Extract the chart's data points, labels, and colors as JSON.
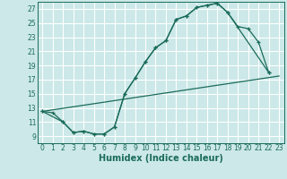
{
  "xlabel": "Humidex (Indice chaleur)",
  "bg_color": "#cce8e8",
  "line_color": "#1a6b5a",
  "xlim": [
    -0.5,
    23.5
  ],
  "ylim": [
    8.0,
    28.0
  ],
  "xticks": [
    0,
    1,
    2,
    3,
    4,
    5,
    6,
    7,
    8,
    9,
    10,
    11,
    12,
    13,
    14,
    15,
    16,
    17,
    18,
    19,
    20,
    21,
    22,
    23
  ],
  "yticks": [
    9,
    11,
    13,
    15,
    17,
    19,
    21,
    23,
    25,
    27
  ],
  "grid_color": "#ffffff",
  "curve1_x": [
    0,
    1,
    2,
    3,
    4,
    5,
    6,
    7,
    8,
    9,
    10,
    11,
    12,
    13,
    14,
    15,
    16,
    17,
    18,
    22
  ],
  "curve1_y": [
    12.5,
    12.3,
    11.0,
    9.5,
    9.7,
    9.3,
    9.3,
    10.3,
    15.0,
    17.2,
    19.5,
    21.5,
    22.5,
    25.5,
    26.0,
    27.2,
    27.5,
    27.8,
    26.5,
    18.0
  ],
  "curve2_x": [
    0,
    2,
    3,
    4,
    5,
    6,
    7,
    8,
    9,
    10,
    11,
    12,
    13,
    14,
    15,
    16,
    17,
    18,
    19,
    20,
    21,
    22
  ],
  "curve2_y": [
    12.5,
    11.0,
    9.5,
    9.7,
    9.3,
    9.3,
    10.3,
    15.0,
    17.2,
    19.5,
    21.5,
    22.5,
    25.5,
    26.0,
    27.2,
    27.5,
    27.8,
    26.5,
    24.5,
    24.2,
    22.3,
    18.0
  ],
  "line3_x": [
    0,
    23
  ],
  "line3_y": [
    12.5,
    17.5
  ],
  "xlabel_fontsize": 7,
  "tick_fontsize": 5.5
}
